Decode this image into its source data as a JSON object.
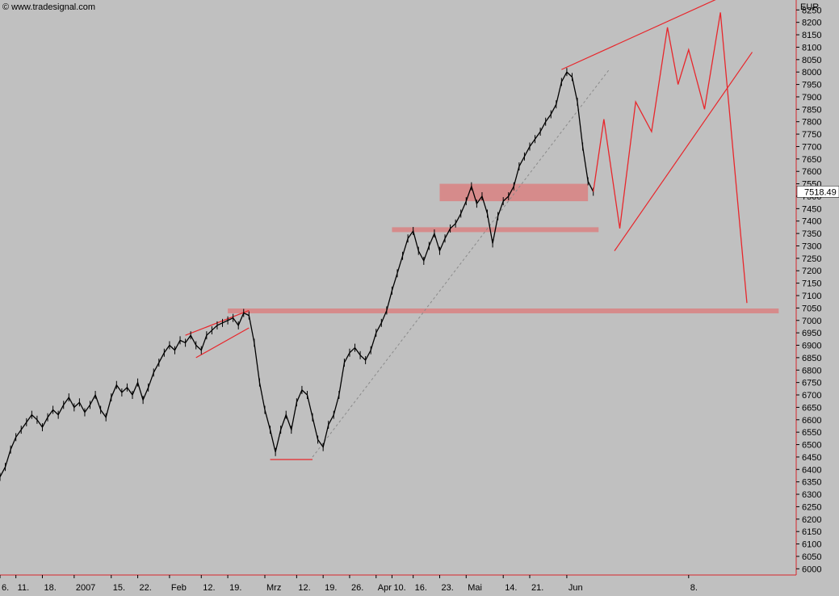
{
  "watermark": "© www.tradesignal.com",
  "chart_data": {
    "type": "line",
    "currency_label": "EUR",
    "last_price_label": "7518.49",
    "y_ticks": [
      6000,
      6050,
      6100,
      6150,
      6200,
      6250,
      6300,
      6350,
      6400,
      6450,
      6500,
      6550,
      6600,
      6650,
      6700,
      6750,
      6800,
      6850,
      6900,
      6950,
      7000,
      7050,
      7100,
      7150,
      7200,
      7250,
      7300,
      7350,
      7400,
      7450,
      7500,
      7550,
      7600,
      7650,
      7700,
      7750,
      7800,
      7850,
      7900,
      7950,
      8000,
      8050,
      8100,
      8150,
      8200,
      8250
    ],
    "ylim": [
      5975,
      8290
    ],
    "x_ticks": [
      {
        "label": "6.",
        "x": 0
      },
      {
        "label": "11.",
        "x": 3
      },
      {
        "label": "18.",
        "x": 8
      },
      {
        "label": "2007",
        "x": 14
      },
      {
        "label": "15.",
        "x": 21
      },
      {
        "label": "22.",
        "x": 26
      },
      {
        "label": "Feb",
        "x": 32
      },
      {
        "label": "12.",
        "x": 38
      },
      {
        "label": "19.",
        "x": 43
      },
      {
        "label": "Mrz",
        "x": 50
      },
      {
        "label": "12.",
        "x": 56
      },
      {
        "label": "19.",
        "x": 61
      },
      {
        "label": "26.",
        "x": 66
      },
      {
        "label": "Apr",
        "x": 71
      },
      {
        "label": "10.",
        "x": 74
      },
      {
        "label": "16.",
        "x": 78
      },
      {
        "label": "23.",
        "x": 83
      },
      {
        "label": "Mai",
        "x": 88
      },
      {
        "label": "14.",
        "x": 95
      },
      {
        "label": "21.",
        "x": 100
      },
      {
        "label": "Jun",
        "x": 107
      },
      {
        "label": "8.",
        "x": 130
      }
    ],
    "xlim": [
      0,
      150
    ],
    "price_series": [
      [
        0,
        6370
      ],
      [
        1,
        6410
      ],
      [
        2,
        6480
      ],
      [
        3,
        6530
      ],
      [
        4,
        6560
      ],
      [
        5,
        6590
      ],
      [
        6,
        6620
      ],
      [
        7,
        6600
      ],
      [
        8,
        6570
      ],
      [
        9,
        6610
      ],
      [
        10,
        6640
      ],
      [
        11,
        6620
      ],
      [
        12,
        6660
      ],
      [
        13,
        6690
      ],
      [
        14,
        6650
      ],
      [
        15,
        6670
      ],
      [
        16,
        6630
      ],
      [
        17,
        6660
      ],
      [
        18,
        6700
      ],
      [
        19,
        6640
      ],
      [
        20,
        6610
      ],
      [
        21,
        6690
      ],
      [
        22,
        6740
      ],
      [
        23,
        6710
      ],
      [
        24,
        6730
      ],
      [
        25,
        6700
      ],
      [
        26,
        6750
      ],
      [
        27,
        6680
      ],
      [
        28,
        6730
      ],
      [
        29,
        6790
      ],
      [
        30,
        6830
      ],
      [
        31,
        6870
      ],
      [
        32,
        6900
      ],
      [
        33,
        6880
      ],
      [
        34,
        6920
      ],
      [
        35,
        6910
      ],
      [
        36,
        6940
      ],
      [
        37,
        6900
      ],
      [
        38,
        6880
      ],
      [
        39,
        6940
      ],
      [
        40,
        6960
      ],
      [
        41,
        6980
      ],
      [
        42,
        6990
      ],
      [
        43,
        7000
      ],
      [
        44,
        7010
      ],
      [
        45,
        6980
      ],
      [
        46,
        7030
      ],
      [
        47,
        7020
      ],
      [
        48,
        6910
      ],
      [
        49,
        6750
      ],
      [
        50,
        6640
      ],
      [
        51,
        6560
      ],
      [
        52,
        6470
      ],
      [
        53,
        6560
      ],
      [
        54,
        6620
      ],
      [
        55,
        6560
      ],
      [
        56,
        6670
      ],
      [
        57,
        6720
      ],
      [
        58,
        6700
      ],
      [
        59,
        6610
      ],
      [
        60,
        6520
      ],
      [
        61,
        6490
      ],
      [
        62,
        6580
      ],
      [
        63,
        6620
      ],
      [
        64,
        6700
      ],
      [
        65,
        6830
      ],
      [
        66,
        6870
      ],
      [
        67,
        6890
      ],
      [
        68,
        6860
      ],
      [
        69,
        6840
      ],
      [
        70,
        6880
      ],
      [
        71,
        6950
      ],
      [
        72,
        6990
      ],
      [
        73,
        7040
      ],
      [
        74,
        7120
      ],
      [
        75,
        7190
      ],
      [
        76,
        7260
      ],
      [
        77,
        7330
      ],
      [
        78,
        7360
      ],
      [
        79,
        7280
      ],
      [
        80,
        7240
      ],
      [
        81,
        7300
      ],
      [
        82,
        7350
      ],
      [
        83,
        7280
      ],
      [
        84,
        7330
      ],
      [
        85,
        7370
      ],
      [
        86,
        7390
      ],
      [
        87,
        7430
      ],
      [
        88,
        7480
      ],
      [
        89,
        7540
      ],
      [
        90,
        7470
      ],
      [
        91,
        7500
      ],
      [
        92,
        7430
      ],
      [
        93,
        7310
      ],
      [
        94,
        7420
      ],
      [
        95,
        7480
      ],
      [
        96,
        7500
      ],
      [
        97,
        7540
      ],
      [
        98,
        7620
      ],
      [
        99,
        7660
      ],
      [
        100,
        7700
      ],
      [
        101,
        7730
      ],
      [
        102,
        7760
      ],
      [
        103,
        7800
      ],
      [
        104,
        7830
      ],
      [
        105,
        7870
      ],
      [
        106,
        7960
      ],
      [
        107,
        8000
      ],
      [
        108,
        7980
      ],
      [
        109,
        7880
      ],
      [
        110,
        7700
      ],
      [
        111,
        7560
      ],
      [
        112,
        7518
      ]
    ],
    "projection_path": [
      [
        112,
        7518
      ],
      [
        114,
        7810
      ],
      [
        117,
        7370
      ],
      [
        120,
        7880
      ],
      [
        123,
        7760
      ],
      [
        126,
        8180
      ],
      [
        128,
        7950
      ],
      [
        130,
        8090
      ],
      [
        133,
        7850
      ],
      [
        136,
        8240
      ],
      [
        141,
        7070
      ]
    ],
    "trendlines": [
      {
        "from": [
          35,
          6940
        ],
        "to": [
          47,
          7040
        ]
      },
      {
        "from": [
          37,
          6850
        ],
        "to": [
          47,
          6970
        ]
      },
      {
        "from": [
          106,
          8010
        ],
        "to": [
          137,
          8310
        ]
      },
      {
        "from": [
          116,
          7280
        ],
        "to": [
          142,
          8080
        ]
      },
      {
        "from": [
          51,
          6440
        ],
        "to": [
          59,
          6440
        ]
      }
    ],
    "dashed_trendline": {
      "from": [
        59,
        6450
      ],
      "to": [
        115,
        8010
      ]
    },
    "support_bands": [
      {
        "from_x": 83,
        "to_x": 111,
        "low": 7480,
        "high": 7550
      },
      {
        "from_x": 74,
        "to_x": 113,
        "low": 7360,
        "high": 7375
      },
      {
        "from_x": 43,
        "to_x": 147,
        "low": 7030,
        "high": 7048
      }
    ],
    "colors": {
      "background": "#c0c0c0",
      "price": "#000000",
      "annotation": "#e8262b",
      "band": "#d88585"
    }
  }
}
